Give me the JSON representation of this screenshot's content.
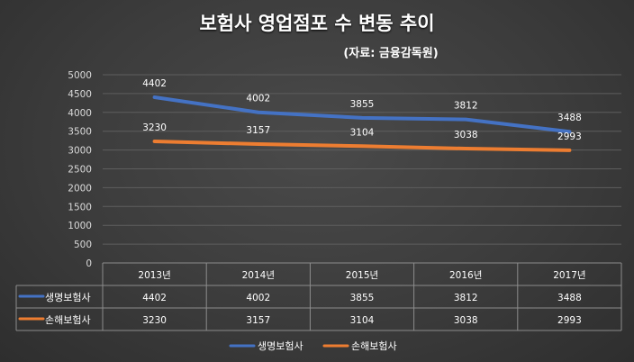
{
  "chart_data": {
    "type": "line",
    "title": "보험사 영업점포 수 변동 추이",
    "subtitle": "(자료: 금융감독원)",
    "categories": [
      "2013년",
      "2014년",
      "2015년",
      "2016년",
      "2017년"
    ],
    "series": [
      {
        "name": "생명보험사",
        "values": [
          4402,
          4002,
          3855,
          3812,
          3488
        ],
        "color": "#4472C4"
      },
      {
        "name": "손해보험사",
        "values": [
          3230,
          3157,
          3104,
          3038,
          2993
        ],
        "color": "#ED7D31"
      }
    ],
    "ylim": [
      0,
      5000
    ],
    "yticks": [
      0,
      500,
      1000,
      1500,
      2000,
      2500,
      3000,
      3500,
      4000,
      4500,
      5000
    ],
    "grid": true,
    "data_table": true,
    "legend_position": "bottom"
  }
}
